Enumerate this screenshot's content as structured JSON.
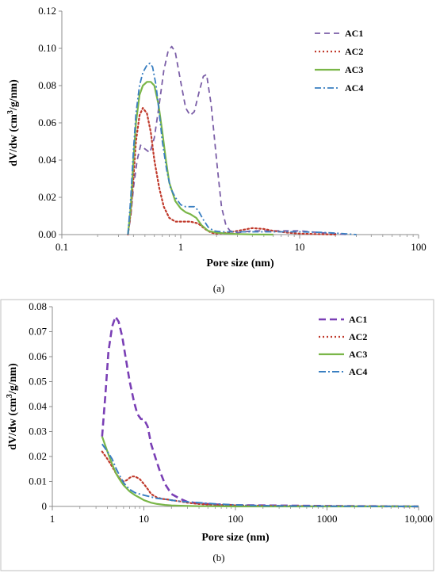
{
  "chart_data": [
    {
      "type": "line",
      "panel": "(a)",
      "x_scale": "log",
      "xlabel": "Pore size (nm)",
      "ylabel": "dV/dw (cm³/g/nm)",
      "ylabel_parts": {
        "pre": "dV/dw (cm",
        "sup": "3",
        "post": "/g/nm)"
      },
      "xlim": [
        0.1,
        100
      ],
      "ylim": [
        0,
        0.12
      ],
      "x_ticks": [
        0.1,
        1,
        10,
        100
      ],
      "x_tick_labels": [
        "0.1",
        "1",
        "10",
        "100"
      ],
      "y_ticks": [
        0,
        0.02,
        0.04,
        0.06,
        0.08,
        0.1,
        0.12
      ],
      "y_tick_labels": [
        "0.00",
        "0.02",
        "0.04",
        "0.06",
        "0.08",
        "0.10",
        "0.12"
      ],
      "grid": false,
      "legend_position": "top-right",
      "series": [
        {
          "name": "AC1",
          "color": "#7b5ea7",
          "dash": "7,5",
          "width": 1.8,
          "x": [
            0.36,
            0.38,
            0.4,
            0.43,
            0.46,
            0.5,
            0.55,
            0.6,
            0.66,
            0.72,
            0.78,
            0.84,
            0.9,
            1.0,
            1.1,
            1.2,
            1.3,
            1.42,
            1.55,
            1.65,
            1.8,
            2.0,
            2.2,
            2.4,
            2.6,
            3.0,
            4.0,
            6.0,
            10.0,
            15.0,
            20.0,
            25.0
          ],
          "y": [
            0.0,
            0.01,
            0.025,
            0.04,
            0.048,
            0.046,
            0.044,
            0.052,
            0.07,
            0.088,
            0.098,
            0.101,
            0.098,
            0.082,
            0.068,
            0.064,
            0.066,
            0.076,
            0.085,
            0.086,
            0.07,
            0.04,
            0.015,
            0.005,
            0.002,
            0.001,
            0.002,
            0.002,
            0.002,
            0.001,
            0.0005,
            0.0
          ]
        },
        {
          "name": "AC2",
          "color": "#c0392b",
          "dash": "2,3",
          "width": 2.2,
          "x": [
            0.36,
            0.38,
            0.4,
            0.42,
            0.45,
            0.48,
            0.52,
            0.56,
            0.6,
            0.66,
            0.72,
            0.8,
            0.9,
            1.0,
            1.2,
            1.4,
            1.6,
            1.8,
            2.0,
            2.5,
            3.0,
            4.0,
            5.0,
            6.0,
            8.0,
            10.0,
            15.0,
            20.0
          ],
          "y": [
            0.0,
            0.012,
            0.03,
            0.05,
            0.064,
            0.068,
            0.065,
            0.055,
            0.04,
            0.025,
            0.015,
            0.009,
            0.007,
            0.007,
            0.007,
            0.006,
            0.003,
            0.001,
            0.0005,
            0.001,
            0.002,
            0.0035,
            0.003,
            0.002,
            0.001,
            0.0005,
            0.0002,
            0.0
          ]
        },
        {
          "name": "AC3",
          "color": "#7ab648",
          "dash": "",
          "width": 2.2,
          "x": [
            0.36,
            0.38,
            0.4,
            0.42,
            0.45,
            0.48,
            0.52,
            0.56,
            0.6,
            0.65,
            0.7,
            0.75,
            0.8,
            0.9,
            1.0,
            1.1,
            1.2,
            1.35,
            1.5,
            1.7,
            2.0,
            2.5,
            3.0,
            4.0,
            6.0
          ],
          "y": [
            0.0,
            0.015,
            0.04,
            0.06,
            0.075,
            0.08,
            0.082,
            0.082,
            0.08,
            0.07,
            0.055,
            0.04,
            0.028,
            0.018,
            0.014,
            0.012,
            0.011,
            0.009,
            0.005,
            0.002,
            0.001,
            0.0005,
            0.0003,
            0.0001,
            0.0
          ]
        },
        {
          "name": "AC4",
          "color": "#3a7fc1",
          "dash": "8,3,2,3",
          "width": 1.8,
          "x": [
            0.36,
            0.38,
            0.4,
            0.42,
            0.45,
            0.48,
            0.52,
            0.55,
            0.58,
            0.62,
            0.66,
            0.7,
            0.76,
            0.82,
            0.9,
            1.0,
            1.1,
            1.2,
            1.3,
            1.4,
            1.55,
            1.7,
            1.9,
            2.2,
            2.6,
            3.0,
            4.0,
            6.0,
            10.0,
            15.0,
            20.0,
            25.0,
            30.0
          ],
          "y": [
            0.0,
            0.02,
            0.045,
            0.065,
            0.08,
            0.087,
            0.091,
            0.092,
            0.09,
            0.08,
            0.065,
            0.05,
            0.035,
            0.025,
            0.02,
            0.016,
            0.015,
            0.015,
            0.015,
            0.013,
            0.008,
            0.004,
            0.002,
            0.0015,
            0.0015,
            0.0015,
            0.0015,
            0.0015,
            0.0015,
            0.0012,
            0.0008,
            0.0004,
            0.0
          ]
        }
      ]
    },
    {
      "type": "line",
      "panel": "(b)",
      "x_scale": "log",
      "xlabel": "Pore size (nm)",
      "ylabel": "dV/dw (cm³/g/nm)",
      "ylabel_parts": {
        "pre": "dV/dw (cm",
        "sup": "3",
        "post": "/g/nm)"
      },
      "xlim": [
        1,
        10000
      ],
      "ylim": [
        0,
        0.08
      ],
      "x_ticks": [
        1,
        10,
        100,
        1000,
        10000
      ],
      "x_tick_labels": [
        "1",
        "10",
        "100",
        "1000",
        "10,000"
      ],
      "y_ticks": [
        0,
        0.01,
        0.02,
        0.03,
        0.04,
        0.05,
        0.06,
        0.07,
        0.08
      ],
      "y_tick_labels": [
        "0",
        "0.01",
        "0.02",
        "0.03",
        "0.04",
        "0.05",
        "0.06",
        "0.07",
        "0.08"
      ],
      "grid": false,
      "legend_position": "top-right",
      "series": [
        {
          "name": "AC1",
          "color": "#7a3fb5",
          "dash": "9,5",
          "width": 2.6,
          "x": [
            3.5,
            3.8,
            4.1,
            4.5,
            4.9,
            5.3,
            5.8,
            6.3,
            7.0,
            7.8,
            8.5,
            9.3,
            10.0,
            11.0,
            12.0,
            13.5,
            15.0,
            17.0,
            20.0,
            25.0,
            30.0,
            40.0,
            50.0,
            70.0,
            100.0,
            200.0,
            500.0,
            1000.0,
            3000.0,
            10000.0
          ],
          "y": [
            0.028,
            0.045,
            0.062,
            0.072,
            0.076,
            0.074,
            0.068,
            0.06,
            0.05,
            0.042,
            0.037,
            0.035,
            0.035,
            0.032,
            0.025,
            0.019,
            0.014,
            0.009,
            0.005,
            0.003,
            0.0018,
            0.0012,
            0.001,
            0.0007,
            0.0005,
            0.0004,
            0.0003,
            0.0002,
            0.0001,
            0.0
          ]
        },
        {
          "name": "AC2",
          "color": "#c0392b",
          "dash": "2,3",
          "width": 2.2,
          "x": [
            3.5,
            4.0,
            4.5,
            5.0,
            5.5,
            6.0,
            6.5,
            7.0,
            7.5,
            8.0,
            9.0,
            10.0,
            11.0,
            12.0,
            14.0,
            16.0,
            18.0,
            20.0,
            25.0,
            30.0,
            40.0,
            50.0,
            70.0,
            100.0,
            200.0,
            1000.0,
            10000.0
          ],
          "y": [
            0.022,
            0.019,
            0.016,
            0.013,
            0.011,
            0.01,
            0.0105,
            0.0115,
            0.012,
            0.012,
            0.011,
            0.009,
            0.007,
            0.005,
            0.0035,
            0.003,
            0.0028,
            0.0025,
            0.002,
            0.0015,
            0.001,
            0.0008,
            0.0006,
            0.0004,
            0.0003,
            0.0001,
            0.0
          ]
        },
        {
          "name": "AC3",
          "color": "#7ab648",
          "dash": "",
          "width": 2.2,
          "x": [
            3.5,
            4.0,
            4.5,
            5.0,
            5.5,
            6.0,
            7.0,
            8.0,
            9.0,
            10.0,
            12.0,
            14.0,
            17.0,
            20.0,
            25.0,
            30.0,
            40.0,
            50.0,
            100.0,
            1000.0,
            10000.0
          ],
          "y": [
            0.028,
            0.022,
            0.017,
            0.013,
            0.0105,
            0.0085,
            0.006,
            0.0045,
            0.0035,
            0.0025,
            0.0015,
            0.001,
            0.0006,
            0.0004,
            0.0003,
            0.0002,
            0.0001,
            0.0001,
            0.0,
            0.0,
            0.0
          ]
        },
        {
          "name": "AC4",
          "color": "#3a7fc1",
          "dash": "9,3,2,3",
          "width": 2.0,
          "x": [
            3.5,
            4.0,
            4.5,
            5.0,
            5.5,
            6.0,
            6.5,
            7.0,
            8.0,
            9.0,
            10.0,
            12.0,
            14.0,
            16.0,
            18.0,
            20.0,
            25.0,
            30.0,
            40.0,
            50.0,
            70.0,
            100.0,
            200.0,
            1000.0,
            10000.0
          ],
          "y": [
            0.025,
            0.022,
            0.019,
            0.015,
            0.012,
            0.0095,
            0.008,
            0.0068,
            0.0055,
            0.005,
            0.0045,
            0.0038,
            0.0032,
            0.003,
            0.0028,
            0.0025,
            0.002,
            0.0018,
            0.0015,
            0.0012,
            0.0009,
            0.0006,
            0.0003,
            0.0001,
            0.0
          ]
        }
      ]
    }
  ]
}
